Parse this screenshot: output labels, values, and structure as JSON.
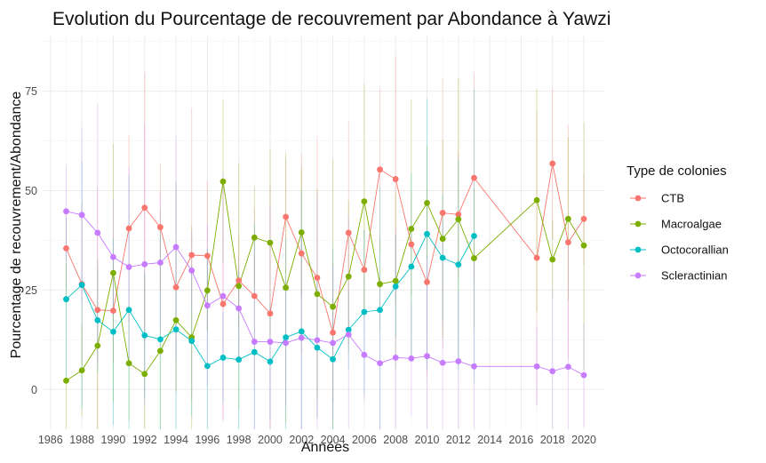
{
  "chart_data": {
    "type": "line",
    "title": "Evolution du Pourcentage de recouvrement par Abondance à Yawzi",
    "xlabel": "Années",
    "ylabel": "Pourcentage de recouvrement/Abondance",
    "xlim": [
      1985.5,
      2021.3
    ],
    "ylim": [
      -10,
      89
    ],
    "x_ticks": [
      "1986",
      "1988",
      "1990",
      "1992",
      "1994",
      "1996",
      "1998",
      "2000",
      "2002",
      "2004",
      "2006",
      "2008",
      "2010",
      "2012",
      "2014",
      "2016",
      "2018",
      "2020"
    ],
    "y_ticks": [
      "0",
      "25",
      "50",
      "75"
    ],
    "grid": true,
    "legend": {
      "title": "Type de colonies",
      "position": "right"
    },
    "series": [
      {
        "name": "CTB",
        "color": "#f8766d",
        "points": [
          [
            1987,
            35.5
          ],
          [
            1988,
            26.5
          ],
          [
            1989,
            20
          ],
          [
            1990,
            19.8
          ],
          [
            1991,
            40.5
          ],
          [
            1992,
            45.7
          ],
          [
            1993,
            40.8
          ],
          [
            1994,
            25.7
          ],
          [
            1995,
            33.8
          ],
          [
            1996,
            33.6
          ],
          [
            1997,
            21.5
          ],
          [
            1998,
            27.4
          ],
          [
            1999,
            23.5
          ],
          [
            2000,
            19.1
          ],
          [
            2001,
            43.4
          ],
          [
            2002,
            34.2
          ],
          [
            2003,
            28.1
          ],
          [
            2004,
            14.3
          ],
          [
            2005,
            39.4
          ],
          [
            2006,
            30.1
          ],
          [
            2007,
            55.3
          ],
          [
            2008,
            52.9
          ],
          [
            2009,
            36.5
          ],
          [
            2010,
            27
          ],
          [
            2011,
            44.4
          ],
          [
            2012,
            44
          ],
          [
            2013,
            53.2
          ],
          [
            2017,
            33.1
          ],
          [
            2018,
            56.8
          ],
          [
            2019,
            37
          ],
          [
            2020,
            42.9
          ]
        ]
      },
      {
        "name": "Macroalgae",
        "color": "#7cae00",
        "points": [
          [
            1987,
            2.2
          ],
          [
            1988,
            4.8
          ],
          [
            1989,
            11
          ],
          [
            1990,
            29.3
          ],
          [
            1991,
            6.6
          ],
          [
            1992,
            3.9
          ],
          [
            1993,
            9.7
          ],
          [
            1994,
            17.4
          ],
          [
            1995,
            13.1
          ],
          [
            1996,
            24.9
          ],
          [
            1997,
            52.3
          ],
          [
            1998,
            26
          ],
          [
            1999,
            38.2
          ],
          [
            2000,
            36.9
          ],
          [
            2001,
            25.6
          ],
          [
            2002,
            39.5
          ],
          [
            2003,
            24
          ],
          [
            2004,
            20.8
          ],
          [
            2005,
            28.4
          ],
          [
            2006,
            47.3
          ],
          [
            2007,
            26.5
          ],
          [
            2008,
            27.3
          ],
          [
            2009,
            40.4
          ],
          [
            2010,
            46.9
          ],
          [
            2011,
            37.9
          ],
          [
            2012,
            42.8
          ],
          [
            2013,
            33
          ],
          [
            2017,
            47.6
          ],
          [
            2018,
            32.7
          ],
          [
            2019,
            42.9
          ],
          [
            2020,
            36.2
          ]
        ]
      },
      {
        "name": "Octocorallian",
        "color": "#00bfc4",
        "points": [
          [
            1987,
            22.7
          ],
          [
            1988,
            26.3
          ],
          [
            1989,
            17.4
          ],
          [
            1990,
            14.5
          ],
          [
            1991,
            20
          ],
          [
            1992,
            13.6
          ],
          [
            1993,
            12.6
          ],
          [
            1994,
            15.1
          ],
          [
            1995,
            12.2
          ],
          [
            1996,
            5.9
          ],
          [
            1997,
            8
          ],
          [
            1998,
            7.5
          ],
          [
            1999,
            9.4
          ],
          [
            2000,
            7
          ],
          [
            2001,
            13.1
          ],
          [
            2002,
            14.6
          ],
          [
            2003,
            10.5
          ],
          [
            2004,
            7.6
          ],
          [
            2005,
            15
          ],
          [
            2006,
            19.5
          ],
          [
            2007,
            20
          ],
          [
            2008,
            25.9
          ],
          [
            2009,
            30.9
          ],
          [
            2010,
            39.1
          ],
          [
            2011,
            33.1
          ],
          [
            2012,
            31.4
          ],
          [
            2013,
            38.6
          ]
        ]
      },
      {
        "name": "Scleractinian",
        "color": "#c77cff",
        "points": [
          [
            1987,
            44.8
          ],
          [
            1988,
            43.9
          ],
          [
            1989,
            39.4
          ],
          [
            1990,
            33.3
          ],
          [
            1991,
            30.8
          ],
          [
            1992,
            31.5
          ],
          [
            1993,
            31.9
          ],
          [
            1994,
            35.8
          ],
          [
            1995,
            29.9
          ],
          [
            1996,
            21.1
          ],
          [
            1997,
            23.5
          ],
          [
            1998,
            20.4
          ],
          [
            1999,
            12
          ],
          [
            2000,
            12
          ],
          [
            2001,
            11.7
          ],
          [
            2002,
            13
          ],
          [
            2003,
            12.4
          ],
          [
            2004,
            11.7
          ],
          [
            2005,
            13.8
          ],
          [
            2006,
            8.7
          ],
          [
            2007,
            6.6
          ],
          [
            2008,
            8
          ],
          [
            2009,
            7.8
          ],
          [
            2010,
            8.4
          ],
          [
            2011,
            6.7
          ],
          [
            2012,
            7.1
          ],
          [
            2013,
            5.8
          ],
          [
            2017,
            5.8
          ],
          [
            2018,
            4.6
          ],
          [
            2019,
            5.7
          ],
          [
            2020,
            3.6
          ]
        ]
      }
    ]
  }
}
